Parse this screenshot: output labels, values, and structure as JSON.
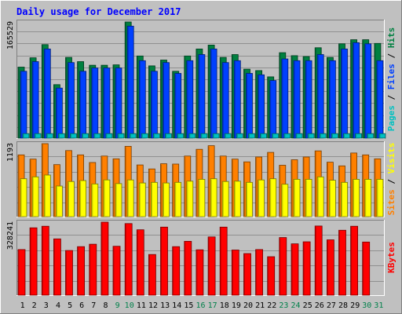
{
  "chart_data": {
    "type": "bar",
    "title": "Daily usage for December 2017",
    "categories": [
      "1",
      "2",
      "3",
      "4",
      "5",
      "6",
      "7",
      "8",
      "9",
      "10",
      "11",
      "12",
      "13",
      "14",
      "15",
      "16",
      "17",
      "18",
      "19",
      "20",
      "21",
      "22",
      "23",
      "24",
      "25",
      "26",
      "27",
      "28",
      "29",
      "30",
      "31"
    ],
    "weekend_days": [
      "9",
      "10",
      "16",
      "17",
      "23",
      "24",
      "30",
      "31"
    ],
    "panels": [
      {
        "id": "pages-files-hits",
        "ymax_label": "165529",
        "ymax": 165529,
        "axis_label_parts": [
          {
            "text": "Pages",
            "color": "#00c0c0"
          },
          {
            "text": " / ",
            "color": "#000000"
          },
          {
            "text": "Files",
            "color": "#0040ff"
          },
          {
            "text": " / ",
            "color": "#000000"
          },
          {
            "text": "Hits",
            "color": "#008040"
          }
        ],
        "series": [
          {
            "name": "Hits",
            "color": "#008040",
            "values": [
              101200,
              114500,
              133300,
              76300,
              115100,
              109100,
              103900,
              103900,
              104500,
              165529,
              117100,
              103000,
              111300,
              95300,
              117100,
              127100,
              132700,
              115100,
              119100,
              98300,
              96300,
              87400,
              121800,
              117500,
              116300,
              128800,
              115100,
              134400,
              140200,
              140200,
              135000
            ]
          },
          {
            "name": "Files",
            "color": "#0040ff",
            "values": [
              95300,
              109100,
              127100,
              71400,
              107700,
              95300,
              100000,
              100000,
              100000,
              159600,
              110400,
              95300,
              107700,
              92300,
              110400,
              119100,
              127100,
              107700,
              110400,
              92300,
              90300,
              82100,
              112800,
              110400,
              110400,
              119100,
              110400,
              127100,
              136000,
              134400,
              110400
            ]
          },
          {
            "name": "Pages",
            "color": "#00c0c0",
            "values": [
              6500,
              6500,
              6500,
              6500,
              6500,
              6500,
              6500,
              6500,
              6500,
              6500,
              6500,
              6500,
              6500,
              6500,
              6500,
              6500,
              6500,
              6500,
              6500,
              6500,
              6500,
              6500,
              6500,
              6500,
              6500,
              6500,
              6500,
              6500,
              6500,
              6500,
              6500
            ]
          }
        ]
      },
      {
        "id": "sites-visits",
        "ymax_label": "1193",
        "ymax": 1193,
        "axis_label_parts": [
          {
            "text": "Sites",
            "color": "#ff8000"
          },
          {
            "text": " / ",
            "color": "#000000"
          },
          {
            "text": "Visits",
            "color": "#ffff00"
          }
        ],
        "series": [
          {
            "name": "Visits",
            "color": "#ff8000",
            "values": [
              1010,
              940,
              1193,
              850,
              1080,
              1010,
              885,
              990,
              945,
              1150,
              845,
              780,
              865,
              860,
              990,
              1100,
              1160,
              990,
              940,
              895,
              975,
              1050,
              840,
              930,
              975,
              1075,
              890,
              830,
              1040,
              1010,
              945
            ]
          },
          {
            "name": "Sites",
            "color": "#ffff00",
            "values": [
              620,
              650,
              680,
              500,
              575,
              590,
              535,
              600,
              540,
              600,
              550,
              560,
              550,
              560,
              580,
              610,
              620,
              575,
              580,
              560,
              600,
              620,
              530,
              610,
              610,
              650,
              595,
              560,
              610,
              610,
              610
            ]
          }
        ]
      },
      {
        "id": "kbytes",
        "ymax_label": "328241",
        "ymax": 328241,
        "axis_label_parts": [
          {
            "text": "KBytes",
            "color": "#ff0000"
          }
        ],
        "series": [
          {
            "name": "KBytes",
            "color": "#ff0000",
            "values": [
              205000,
              303000,
              310000,
              253000,
              201000,
              218000,
              229000,
              328241,
              220000,
              322000,
              294000,
              183000,
              306000,
              218000,
              242000,
              204000,
              262000,
              306000,
              203000,
              187000,
              205000,
              173000,
              259000,
              231000,
              240000,
              311000,
              249000,
              292000,
              310000,
              239000,
              0
            ]
          }
        ]
      }
    ]
  }
}
